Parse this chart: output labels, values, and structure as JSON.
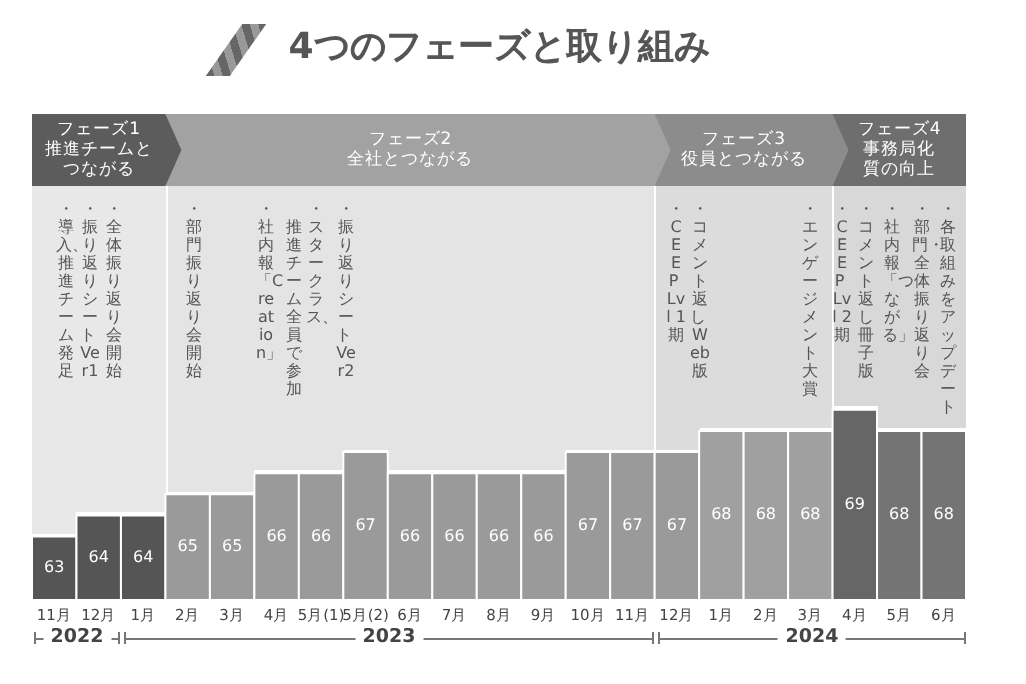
{
  "chart_data": {
    "type": "bar",
    "title": "4つのフェーズと取り組み",
    "categories": [
      "11月",
      "12月",
      "1月",
      "2月",
      "3月",
      "4月",
      "5月(1)",
      "5月(2)",
      "6月",
      "7月",
      "8月",
      "9月",
      "10月",
      "11月",
      "12月",
      "1月",
      "2月",
      "3月",
      "4月",
      "5月",
      "6月"
    ],
    "values": [
      63,
      64,
      64,
      65,
      65,
      66,
      66,
      67,
      66,
      66,
      66,
      66,
      67,
      67,
      67,
      68,
      68,
      68,
      69,
      68,
      68
    ],
    "colors": [
      "#555555",
      "#555555",
      "#555555",
      "#9a9a9a",
      "#9a9a9a",
      "#9a9a9a",
      "#9a9a9a",
      "#9a9a9a",
      "#9a9a9a",
      "#9a9a9a",
      "#9a9a9a",
      "#9a9a9a",
      "#9a9a9a",
      "#9a9a9a",
      "#9a9a9a",
      "#a0a0a0",
      "#a0a0a0",
      "#a0a0a0",
      "#666666",
      "#747474",
      "#747474"
    ],
    "ylim": [
      60,
      83
    ],
    "tick_labels": "x",
    "data_labels": true,
    "annotations": [
      "フェーズ1\n推進チームとつながる",
      "フェーズ2\n全社とつながる",
      "フェーズ3\n役員とつながる",
      "フェーズ4\n事務局化質の向上",
      "・全体振り返り会開始",
      "・振り返りシート Ver1",
      "・導入、推進チーム発足",
      "・部門振り返り会開始",
      "・スタークラス、",
      "推進チーム全員で参加",
      "・社内報「Creation」",
      "・振り返りシート Ver2",
      "・コメント返し Web版",
      "・CEEP Lvl 1期",
      "・エンゲージメント大賞",
      "・各取組みをアップデート",
      "・部門・全体振り返り会",
      "・社内報「つながる」",
      "・コメント返し冊子版",
      "・CEEP Lvl 2期",
      "2022",
      "2023",
      "2024"
    ]
  }
}
